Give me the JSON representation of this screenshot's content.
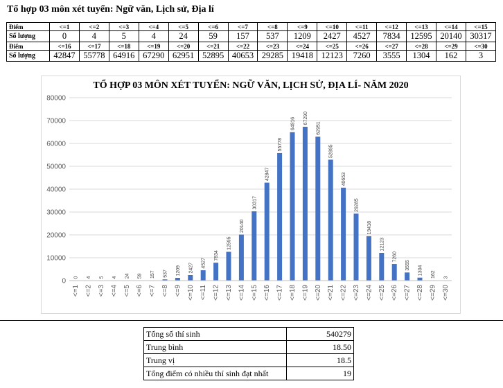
{
  "title": "Tổ hợp 03 môn xét tuyển: Ngữ văn, Lịch sử, Địa lí",
  "table": {
    "row_label_score": "Điểm",
    "row_label_count": "Số lượng",
    "row1_scores": [
      "<=1",
      "<=2",
      "<=3",
      "<=4",
      "<=5",
      "<=6",
      "<=7",
      "<=8",
      "<=9",
      "<=10",
      "<=11",
      "<=12",
      "<=13",
      "<=14",
      "<=15"
    ],
    "row1_counts": [
      "0",
      "4",
      "5",
      "4",
      "24",
      "59",
      "157",
      "537",
      "1209",
      "2427",
      "4527",
      "7834",
      "12595",
      "20140",
      "30317"
    ],
    "row2_scores": [
      "<=16",
      "<=17",
      "<=18",
      "<=19",
      "<=20",
      "<=21",
      "<=22",
      "<=23",
      "<=24",
      "<=25",
      "<=26",
      "<=27",
      "<=28",
      "<=29",
      "<=30"
    ],
    "row2_counts": [
      "42847",
      "55778",
      "64916",
      "67290",
      "62951",
      "52895",
      "40653",
      "29285",
      "19418",
      "12123",
      "7260",
      "3555",
      "1304",
      "162",
      "3"
    ]
  },
  "chart_data": {
    "type": "bar",
    "title": "TỔ HỢP 03 MÔN XÉT TUYỂN: NGỮ VĂN, LỊCH SỬ, ĐỊA LÍ- NĂM 2020",
    "categories": [
      "<=1",
      "<=2",
      "<=3",
      "<=4",
      "<=5",
      "<=6",
      "<=7",
      "<=8",
      "<=9",
      "<=10",
      "<=11",
      "<=12",
      "<=13",
      "<=14",
      "<=15",
      "<=16",
      "<=17",
      "<=18",
      "<=19",
      "<=20",
      "<=21",
      "<=22",
      "<=23",
      "<=24",
      "<=25",
      "<=26",
      "<=27",
      "<=28",
      "<=29",
      "<=30"
    ],
    "values": [
      0,
      4,
      5,
      4,
      24,
      59,
      157,
      537,
      1209,
      2427,
      4527,
      7834,
      12595,
      20140,
      30317,
      42847,
      55778,
      64916,
      67290,
      62951,
      52895,
      40653,
      29285,
      19418,
      12123,
      7260,
      3555,
      1304,
      162,
      3
    ],
    "y_ticks": [
      "0",
      "10000",
      "20000",
      "30000",
      "40000",
      "50000",
      "60000",
      "70000",
      "80000"
    ],
    "ylim": [
      0,
      80000
    ],
    "grid": true,
    "bar_color": "#4472c4"
  },
  "stats": [
    {
      "label": "Tổng số thí sinh",
      "value": "540279"
    },
    {
      "label": "Trung bình",
      "value": "18.50"
    },
    {
      "label": "Trung vị",
      "value": "18.5"
    },
    {
      "label": "Tổng điểm có nhiều thí sinh đạt nhất",
      "value": "19"
    }
  ]
}
